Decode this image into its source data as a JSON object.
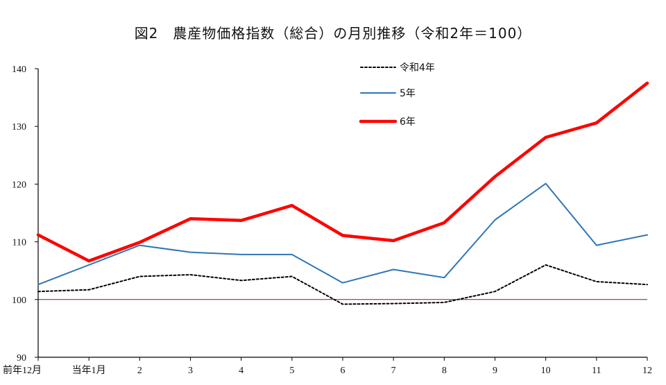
{
  "chart_data": {
    "type": "line",
    "title": "図2　農産物価格指数（総合）の月別推移（令和2年＝100）",
    "categories": [
      "前年12月",
      "当年1月",
      "2",
      "3",
      "4",
      "5",
      "6",
      "7",
      "8",
      "9",
      "10",
      "11",
      "12"
    ],
    "ylim": [
      90,
      140
    ],
    "yticks": [
      90,
      100,
      110,
      120,
      130,
      140
    ],
    "reference_line": 100,
    "legend_position": "top-center",
    "series": [
      {
        "name": "令和4年",
        "style": "dotted",
        "color": "#000000",
        "values": [
          101.4,
          101.7,
          104.0,
          104.3,
          103.3,
          104.0,
          99.2,
          99.3,
          99.5,
          101.4,
          106.0,
          103.1,
          102.6
        ]
      },
      {
        "name": "5年",
        "style": "solid",
        "color": "#2e75b6",
        "values": [
          102.6,
          106.0,
          109.4,
          108.2,
          107.8,
          107.8,
          102.9,
          105.2,
          103.8,
          113.8,
          120.1,
          109.4,
          111.2
        ]
      },
      {
        "name": "6年",
        "style": "bold",
        "color": "#ff0000",
        "values": [
          111.2,
          106.7,
          109.9,
          114.0,
          113.7,
          116.3,
          111.1,
          110.2,
          113.3,
          121.3,
          128.1,
          130.6,
          137.5
        ]
      }
    ]
  }
}
